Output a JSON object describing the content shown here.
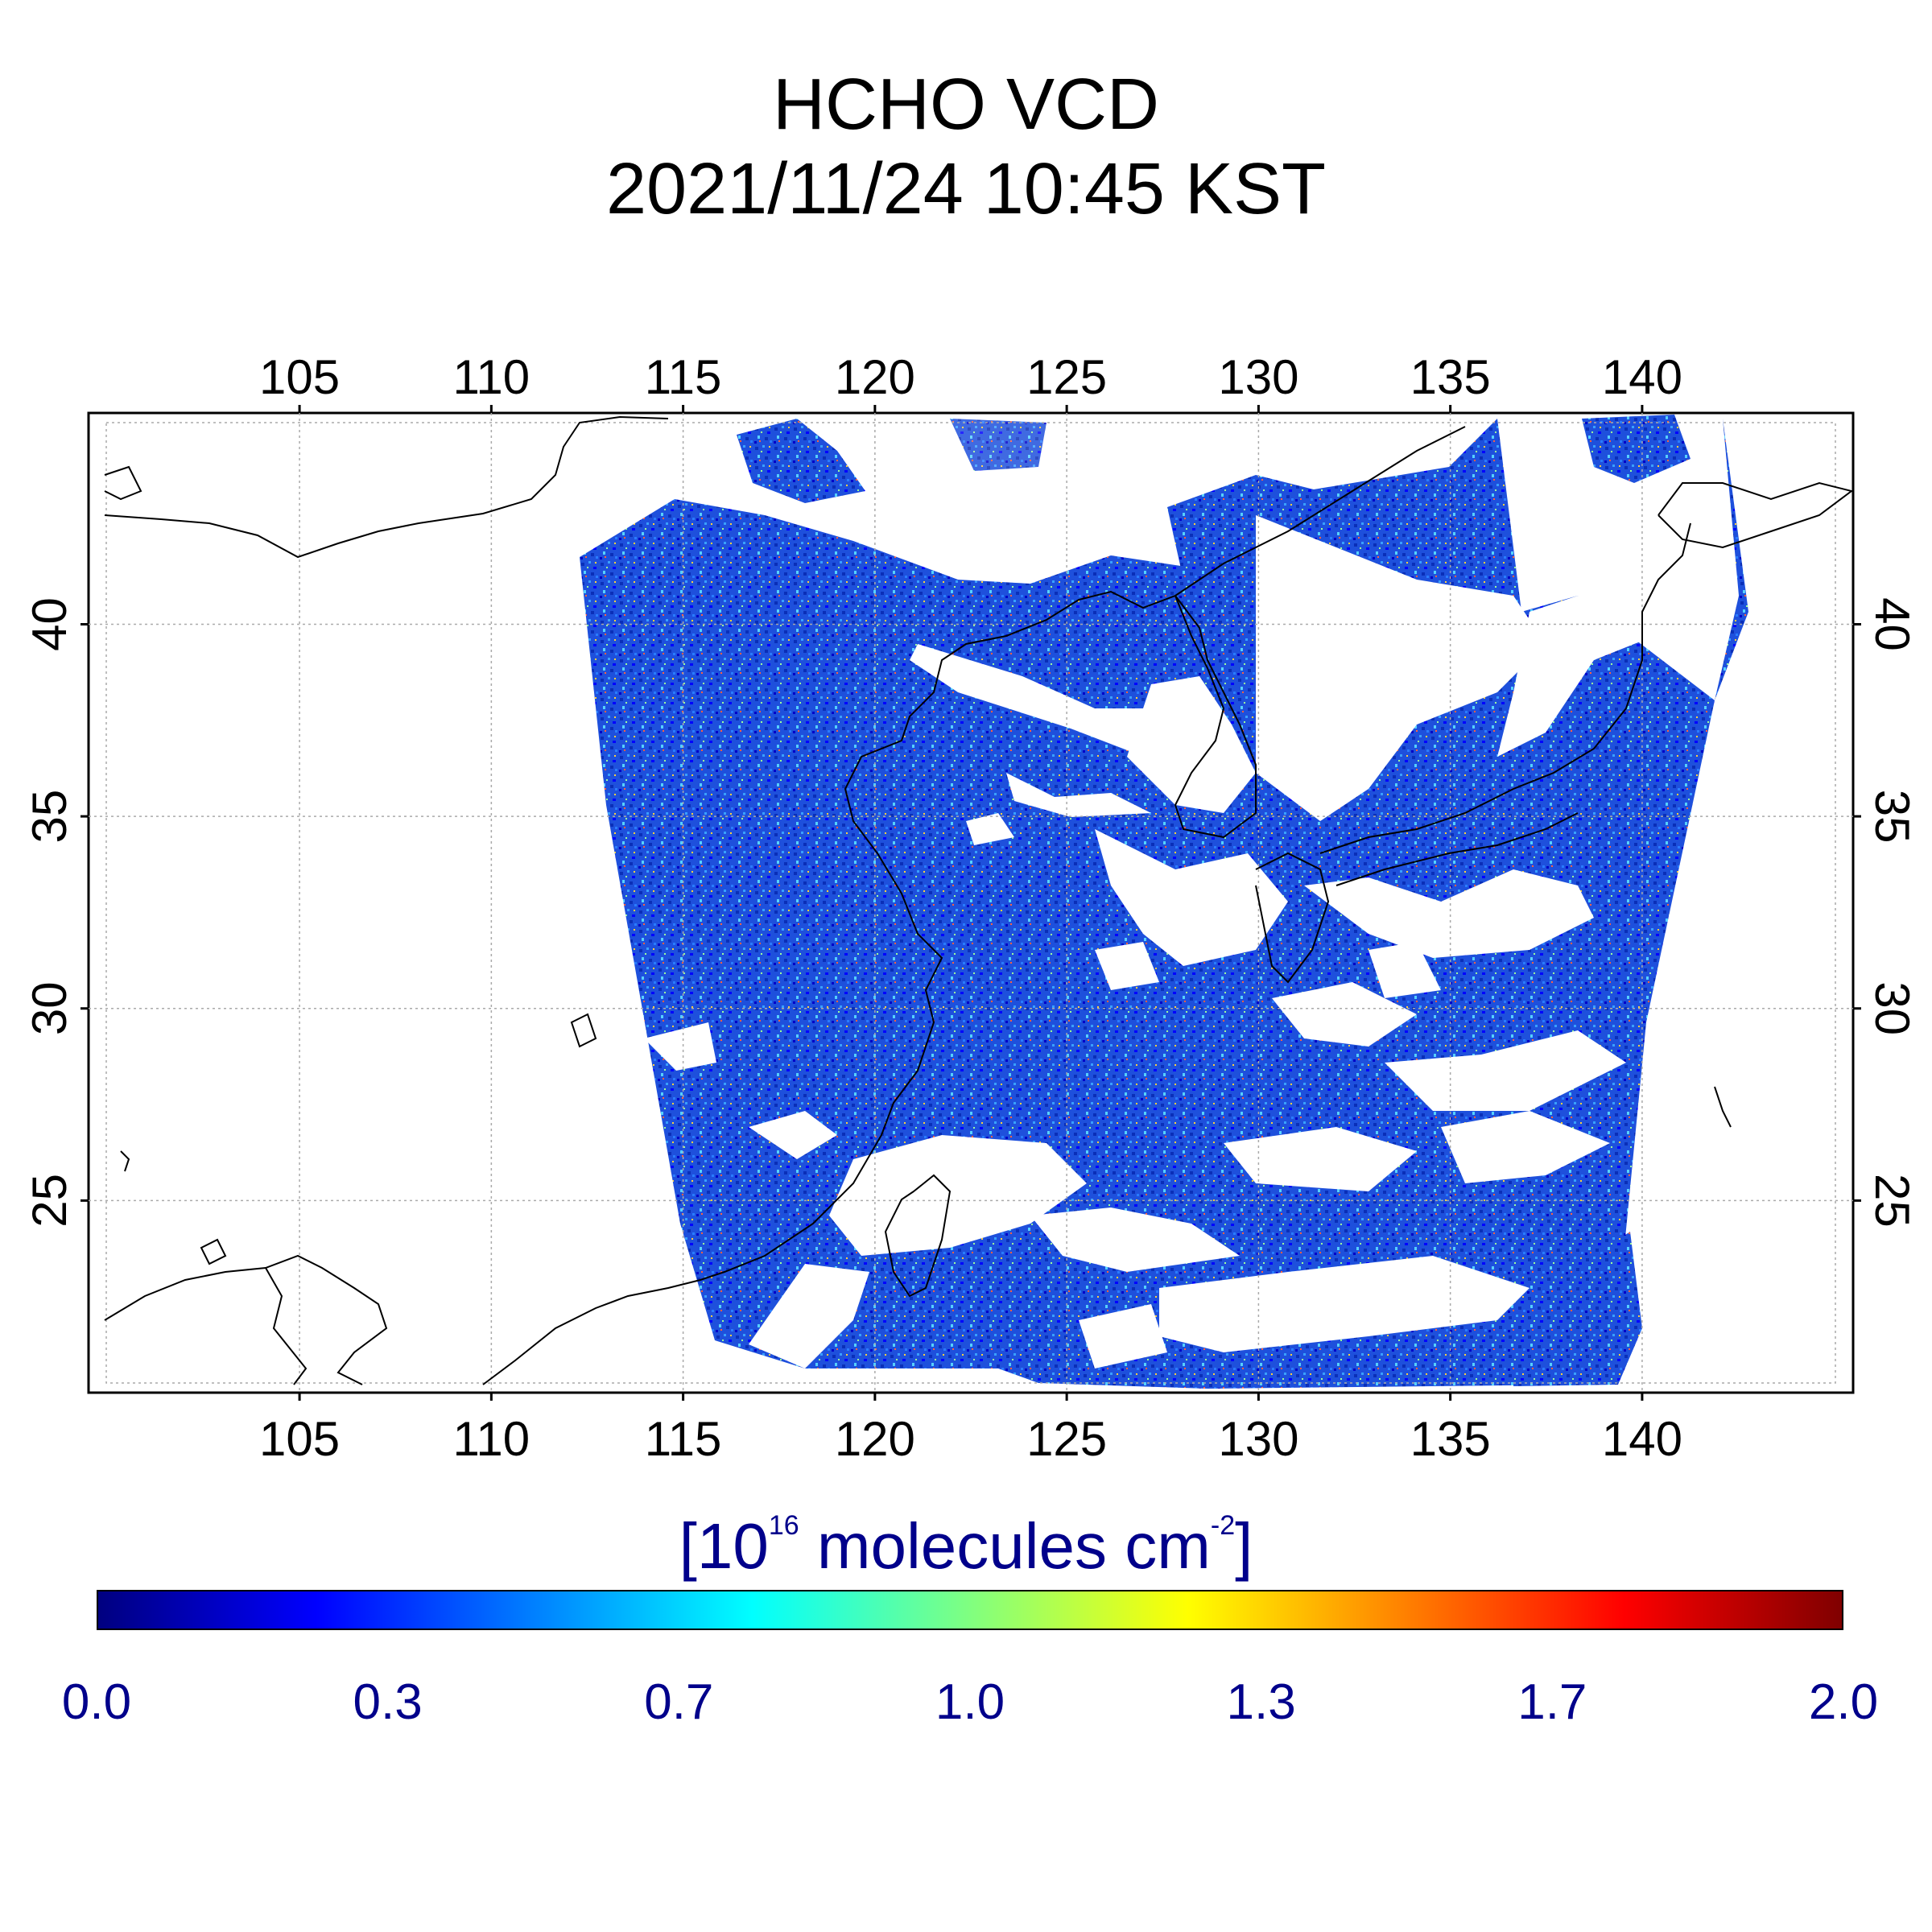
{
  "title": {
    "line1": "HCHO VCD",
    "line2": "2021/11/24 10:45 KST"
  },
  "map": {
    "lon_ticks": [
      "105",
      "110",
      "115",
      "120",
      "125",
      "130",
      "135",
      "140"
    ],
    "lat_ticks": [
      "40",
      "35",
      "30",
      "25"
    ],
    "lon_values": [
      105,
      110,
      115,
      120,
      125,
      130,
      135,
      140
    ],
    "lat_values": [
      40,
      35,
      30,
      25
    ],
    "lon_range": [
      99.5,
      145.5
    ],
    "lat_range": [
      20,
      45.5
    ],
    "data_color": "#1e50dc"
  },
  "colorbar": {
    "unit_prefix": "[10",
    "unit_exp": "16",
    "unit_mid": " molecules cm",
    "unit_exp2": "-2",
    "unit_suffix": "]",
    "labels": [
      "0.0",
      "0.3",
      "0.7",
      "1.0",
      "1.3",
      "1.7",
      "2.0"
    ],
    "stops": [
      "#000080",
      "#0000ff",
      "#0080ff",
      "#00ffff",
      "#80ff80",
      "#ffff00",
      "#ff8000",
      "#ff0000",
      "#800000"
    ]
  }
}
